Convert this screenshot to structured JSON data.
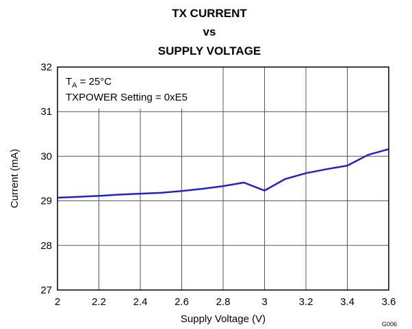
{
  "chart_data": {
    "type": "line",
    "title": [
      "TX CURRENT",
      "vs",
      "SUPPLY VOLTAGE"
    ],
    "x_label": "Supply Voltage (V)",
    "y_label": "Current (mA)",
    "annotations": [
      [
        "T",
        "A",
        " = 25°C"
      ],
      [
        "TXPOWER Setting = 0xE5"
      ]
    ],
    "figure_id": "G006",
    "x": [
      2,
      2.1,
      2.2,
      2.3,
      2.4,
      2.5,
      2.6,
      2.7,
      2.8,
      2.9,
      3,
      3.1,
      3.2,
      3.3,
      3.4,
      3.5,
      3.6
    ],
    "series": [
      {
        "color": "#2020d0",
        "values": [
          29.07,
          29.09,
          29.11,
          29.14,
          29.16,
          29.18,
          29.22,
          29.27,
          29.33,
          29.41,
          29.23,
          29.49,
          29.62,
          29.71,
          29.79,
          30.03,
          30.16
        ]
      }
    ],
    "xlim": [
      2,
      3.6
    ],
    "xticks": [
      2,
      2.2,
      2.4,
      2.6,
      2.8,
      3,
      3.2,
      3.4,
      3.6
    ],
    "ylim": [
      27,
      32
    ],
    "yticks": [
      27,
      28,
      29,
      30,
      31,
      32
    ],
    "grid": true
  }
}
